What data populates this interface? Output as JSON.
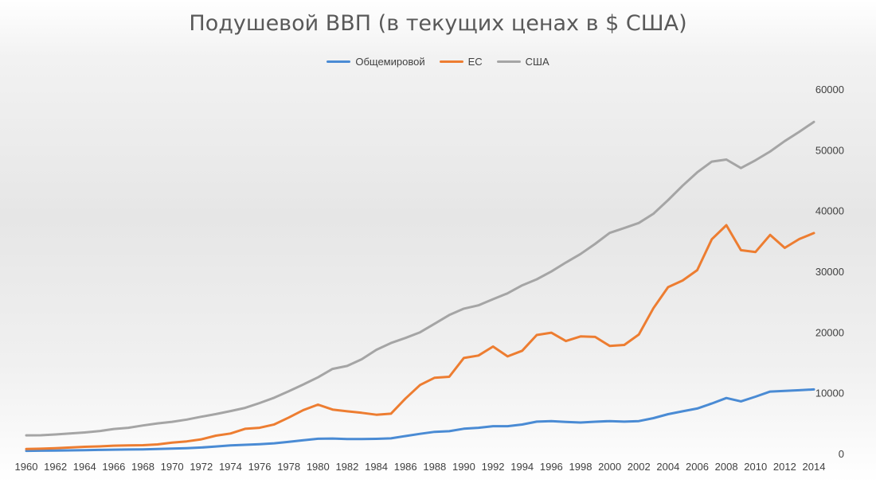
{
  "chart_data": {
    "type": "line",
    "title": "Подушевой ВВП (в текущих ценах в $ США)",
    "xlabel": "",
    "ylabel": "",
    "ylim": [
      0,
      60000
    ],
    "y_ticks": [
      "0",
      "10000",
      "20000",
      "30000",
      "40000",
      "50000",
      "60000"
    ],
    "x_tick_labels": [
      "1960",
      "1962",
      "1964",
      "1966",
      "1968",
      "1970",
      "1972",
      "1974",
      "1976",
      "1978",
      "1980",
      "1982",
      "1984",
      "1986",
      "1988",
      "1990",
      "1992",
      "1994",
      "1996",
      "1998",
      "2000",
      "2002",
      "2004",
      "2006",
      "2008",
      "2010",
      "2012",
      "2014"
    ],
    "legend_position": "top",
    "grid": false,
    "x": [
      1960,
      1961,
      1962,
      1963,
      1964,
      1965,
      1966,
      1967,
      1968,
      1969,
      1970,
      1971,
      1972,
      1973,
      1974,
      1975,
      1976,
      1977,
      1978,
      1979,
      1980,
      1981,
      1982,
      1983,
      1984,
      1985,
      1986,
      1987,
      1988,
      1989,
      1990,
      1991,
      1992,
      1993,
      1994,
      1995,
      1996,
      1997,
      1998,
      1999,
      2000,
      2001,
      2002,
      2003,
      2004,
      2005,
      2006,
      2007,
      2008,
      2009,
      2010,
      2011,
      2012,
      2013,
      2014
    ],
    "series": [
      {
        "name": "Общемировой",
        "color": "#4a8bd4",
        "values": [
          450,
          470,
          490,
          520,
          560,
          600,
          640,
          670,
          700,
          760,
          810,
          880,
          990,
          1170,
          1330,
          1440,
          1540,
          1690,
          1930,
          2200,
          2440,
          2480,
          2400,
          2400,
          2430,
          2500,
          2880,
          3250,
          3570,
          3680,
          4090,
          4250,
          4510,
          4500,
          4780,
          5250,
          5330,
          5210,
          5110,
          5240,
          5340,
          5250,
          5350,
          5830,
          6480,
          6950,
          7410,
          8240,
          9140,
          8590,
          9370,
          10200,
          10310,
          10430,
          10560
        ]
      },
      {
        "name": "ЕС",
        "color": "#ed7d31",
        "values": [
          750,
          800,
          890,
          1000,
          1110,
          1180,
          1300,
          1350,
          1380,
          1510,
          1800,
          2000,
          2350,
          2950,
          3300,
          4080,
          4250,
          4800,
          5930,
          7160,
          8060,
          7240,
          6950,
          6710,
          6390,
          6560,
          9060,
          11290,
          12480,
          12640,
          15730,
          16140,
          17620,
          15990,
          16930,
          19520,
          19900,
          18520,
          19280,
          19200,
          17720,
          17880,
          19600,
          23940,
          27390,
          28490,
          30200,
          35280,
          37600,
          33480,
          33180,
          36000,
          33860,
          35320,
          36300
        ]
      },
      {
        "name": "США",
        "color": "#a5a5a5",
        "values": [
          3000,
          3010,
          3150,
          3300,
          3470,
          3700,
          4050,
          4250,
          4620,
          4970,
          5230,
          5600,
          6060,
          6500,
          7000,
          7520,
          8320,
          9200,
          10270,
          11380,
          12550,
          13940,
          14430,
          15520,
          17080,
          18200,
          19030,
          19960,
          21380,
          22810,
          23850,
          24400,
          25420,
          26390,
          27690,
          28690,
          29970,
          31460,
          32850,
          34520,
          36330,
          37130,
          37970,
          39490,
          41720,
          44110,
          46300,
          48060,
          48400,
          47000,
          48290,
          49730,
          51450,
          52980,
          54600
        ]
      }
    ]
  }
}
